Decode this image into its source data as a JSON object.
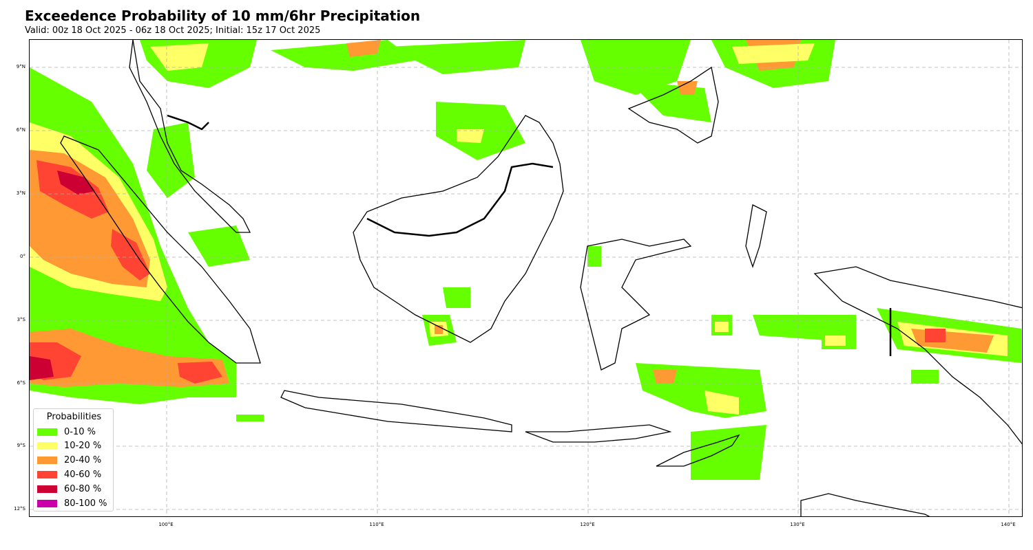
{
  "header": {
    "title": "Exceedence Probability of 10 mm/6hr Precipitation",
    "subtitle": "Valid: 00z 18 Oct 2025 - 06z 18 Oct 2025; Initial: 15z 17 Oct 2025"
  },
  "axes": {
    "lat_labels": [
      "9°N",
      "6°N",
      "3°N",
      "0°",
      "3°S",
      "6°S",
      "9°S",
      "12°S"
    ],
    "lon_labels": [
      "100°E",
      "110°E",
      "120°E",
      "130°E",
      "140°E"
    ],
    "lon_range": [
      93.5,
      140.7
    ],
    "lat_range": [
      -12.2,
      10.5
    ],
    "grid": true
  },
  "legend": {
    "title": "Probabilities",
    "placement": "lower-left",
    "items": [
      {
        "label": "0-10 %",
        "color": "#66ff00"
      },
      {
        "label": "10-20 %",
        "color": "#ffff66"
      },
      {
        "label": "20-40 %",
        "color": "#ff9933"
      },
      {
        "label": "40-60 %",
        "color": "#ff4433"
      },
      {
        "label": "60-80 %",
        "color": "#cc0033"
      },
      {
        "label": "80-100 %",
        "color": "#cc00aa"
      }
    ]
  }
}
